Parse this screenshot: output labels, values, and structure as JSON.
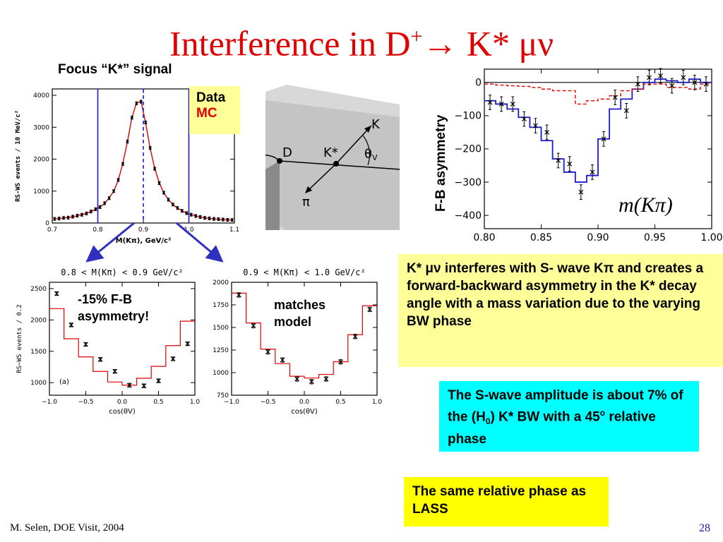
{
  "title": {
    "pre": "Interference in D",
    "sup": "+",
    "arrow": "→",
    "post": " K* μν"
  },
  "focus_label": "Focus “K*” signal",
  "legend": {
    "data": "Data",
    "mc": "MC"
  },
  "diagram": {
    "d": "D",
    "kstar": "K*",
    "k": "K",
    "pi": "π",
    "theta": "θ",
    "theta_sub": "V"
  },
  "fb_axis_label": "F-B asymmetry",
  "mkpi_label": "m(Kπ)",
  "annot_a": "-15% F-B asymmetry!",
  "annot_b": "matches model",
  "box1": "K* μν interferes with S- wave Kπ and creates a forward-backward asymmetry in the K* decay angle with a  mass variation due to the varying BW phase",
  "box2": {
    "pre": "The S-wave amplitude is about 7% of the (H",
    "sub": "0",
    "mid": ") K* BW with a 45",
    "sup": "o",
    "post": " relative phase"
  },
  "box3": "The same relative phase as LASS",
  "footer_left": "M. Selen, DOE Visit, 2004",
  "page_number": "28",
  "colors": {
    "title": "#e00000",
    "data_blue": "#1a1ad0",
    "mc_red": "#e00000",
    "yellow_box": "#ffff99",
    "cyan_box": "#00ffff",
    "arrow_blue": "#3030c0"
  },
  "chart_data": [
    {
      "type": "line",
      "id": "mass",
      "xlabel": "M(Kπ), GeV/c²",
      "ylabel": "RS-WS events / 10 MeV/c²",
      "xlim": [
        0.7,
        1.1
      ],
      "ylim": [
        0,
        4200
      ],
      "xticks": [
        "0.7",
        "0.8",
        "0.9",
        "1.0",
        "1.1"
      ],
      "yticks": [
        "0",
        "1000",
        "2000",
        "3000",
        "4000"
      ],
      "vlines": [
        0.8,
        0.9,
        1.0
      ],
      "x": [
        0.705,
        0.715,
        0.725,
        0.735,
        0.745,
        0.755,
        0.765,
        0.775,
        0.785,
        0.795,
        0.805,
        0.815,
        0.825,
        0.835,
        0.845,
        0.855,
        0.865,
        0.875,
        0.885,
        0.895,
        0.905,
        0.915,
        0.925,
        0.935,
        0.945,
        0.955,
        0.965,
        0.975,
        0.985,
        0.995,
        1.005,
        1.015,
        1.025,
        1.035,
        1.045,
        1.055,
        1.065,
        1.075,
        1.085,
        1.095
      ],
      "series": [
        {
          "name": "Data",
          "values": [
            130,
            140,
            160,
            170,
            200,
            230,
            260,
            300,
            360,
            430,
            500,
            620,
            780,
            1000,
            1350,
            1850,
            2550,
            3300,
            3750,
            3800,
            3150,
            2350,
            1700,
            1250,
            950,
            730,
            580,
            470,
            380,
            310,
            260,
            220,
            190,
            160,
            145,
            130,
            120,
            110,
            100,
            95
          ]
        },
        {
          "name": "MC",
          "values": [
            125,
            140,
            155,
            175,
            195,
            225,
            265,
            300,
            355,
            425,
            510,
            610,
            790,
            990,
            1340,
            1870,
            2540,
            3310,
            3760,
            3810,
            3140,
            2340,
            1710,
            1260,
            940,
            740,
            575,
            465,
            385,
            305,
            265,
            225,
            185,
            165,
            140,
            128,
            118,
            108,
            102,
            92
          ]
        }
      ]
    },
    {
      "type": "line",
      "id": "fb",
      "xlim": [
        0.8,
        1.0
      ],
      "ylim": [
        -440,
        40
      ],
      "xticks": [
        "0.80",
        "0.85",
        "0.90",
        "0.95",
        "1.00"
      ],
      "yticks": [
        "0",
        "−100",
        "−200",
        "−300",
        "−400"
      ],
      "x": [
        0.805,
        0.815,
        0.825,
        0.835,
        0.845,
        0.855,
        0.865,
        0.875,
        0.885,
        0.895,
        0.905,
        0.915,
        0.925,
        0.935,
        0.945,
        0.955,
        0.965,
        0.975,
        0.985,
        0.995
      ],
      "series": [
        {
          "name": "Data",
          "values": [
            -60,
            -65,
            -65,
            -110,
            -130,
            -150,
            -235,
            -245,
            -330,
            -270,
            -170,
            -45,
            -85,
            -5,
            15,
            20,
            -10,
            15,
            0,
            -5
          ]
        },
        {
          "name": "Model",
          "values": [
            -55,
            -65,
            -80,
            -105,
            -135,
            -175,
            -230,
            -270,
            -300,
            -280,
            -170,
            -80,
            -50,
            -20,
            0,
            10,
            5,
            0,
            10,
            0
          ]
        },
        {
          "name": "MC",
          "values": [
            -5,
            -8,
            -10,
            -12,
            -15,
            -20,
            -25,
            -25,
            -65,
            -55,
            -50,
            -40,
            -25,
            -20,
            -5,
            -5,
            -15,
            -15,
            -20,
            -5
          ]
        }
      ]
    },
    {
      "type": "line",
      "id": "cosA",
      "title": "0.8 < M(Kπ) < 0.9 GeV/c²",
      "xlabel": "cos(θV)",
      "ylabel": "RS−WS events / 0.2",
      "annotation": "(a)",
      "xlim": [
        -1.0,
        1.0
      ],
      "ylim": [
        800,
        2600
      ],
      "xticks": [
        "−1.0",
        "−0.5",
        "0.0",
        "0.5",
        "1.0"
      ],
      "yticks": [
        "1000",
        "1500",
        "2000",
        "2500"
      ],
      "x": [
        -0.9,
        -0.7,
        -0.5,
        -0.3,
        -0.1,
        0.1,
        0.3,
        0.5,
        0.7,
        0.9
      ],
      "series": [
        {
          "name": "Data",
          "values": [
            2420,
            1920,
            1610,
            1370,
            1180,
            960,
            950,
            1030,
            1380,
            1620
          ]
        },
        {
          "name": "Model",
          "values": [
            2180,
            1700,
            1410,
            1180,
            1010,
            960,
            1070,
            1260,
            1590,
            1980
          ]
        }
      ]
    },
    {
      "type": "line",
      "id": "cosB",
      "title": "0.9 < M(Kπ) < 1.0 GeV/c²",
      "xlabel": "cos(θV)",
      "xlim": [
        -1.0,
        1.0
      ],
      "ylim": [
        750,
        2000
      ],
      "xticks": [
        "−1.0",
        "−0.5",
        "0.0",
        "0.5",
        "1.0"
      ],
      "yticks": [
        "750",
        "1000",
        "1250",
        "1500",
        "1750",
        "2000"
      ],
      "x": [
        -0.9,
        -0.7,
        -0.5,
        -0.3,
        -0.1,
        0.1,
        0.3,
        0.5,
        0.7,
        0.9
      ],
      "series": [
        {
          "name": "Data",
          "values": [
            1860,
            1520,
            1230,
            1140,
            930,
            900,
            930,
            1120,
            1400,
            1700
          ]
        },
        {
          "name": "Model",
          "values": [
            1880,
            1550,
            1260,
            1100,
            960,
            940,
            980,
            1120,
            1420,
            1740
          ]
        }
      ]
    }
  ]
}
